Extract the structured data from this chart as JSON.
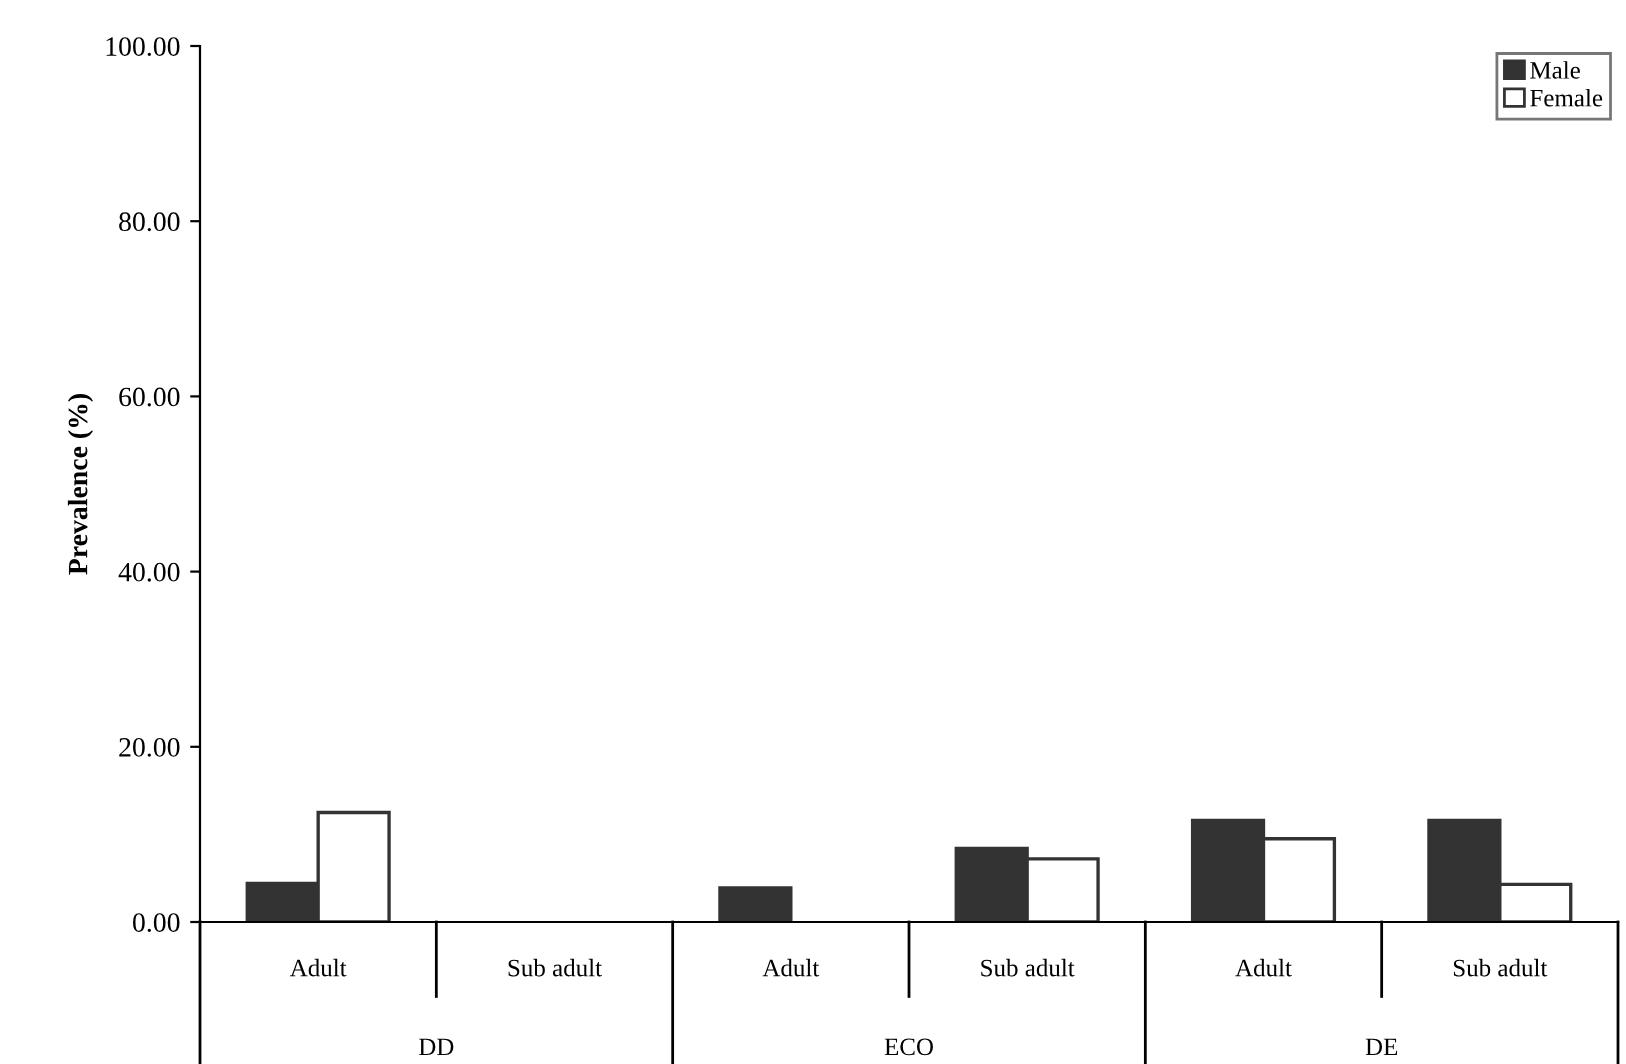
{
  "chart_data": {
    "type": "bar",
    "ylabel": "Prevalence (%)",
    "categories": [
      "Adult",
      "Sub adult",
      "Adult",
      "Sub adult",
      "Adult",
      "Sub adult"
    ],
    "annotations": [
      "DD",
      "ECO",
      "DE"
    ],
    "series": [
      {
        "name": "Male",
        "color": "#333333",
        "values": [
          4.4,
          null,
          3.9,
          8.4,
          11.6,
          11.6
        ]
      },
      {
        "name": "Female",
        "color": "#ffffff",
        "values": [
          12.5,
          null,
          null,
          7.2,
          9.5,
          4.3
        ]
      }
    ],
    "ylim": [
      0,
      100
    ],
    "yticks": [
      {
        "value": 0,
        "label": "0.00"
      },
      {
        "value": 20,
        "label": "20.00"
      },
      {
        "value": 40,
        "label": "40.00"
      },
      {
        "value": 60,
        "label": "60.00"
      },
      {
        "value": 80,
        "label": "80.00"
      },
      {
        "value": 100,
        "label": "100.00"
      }
    ],
    "grid": false,
    "legend": "top right"
  }
}
